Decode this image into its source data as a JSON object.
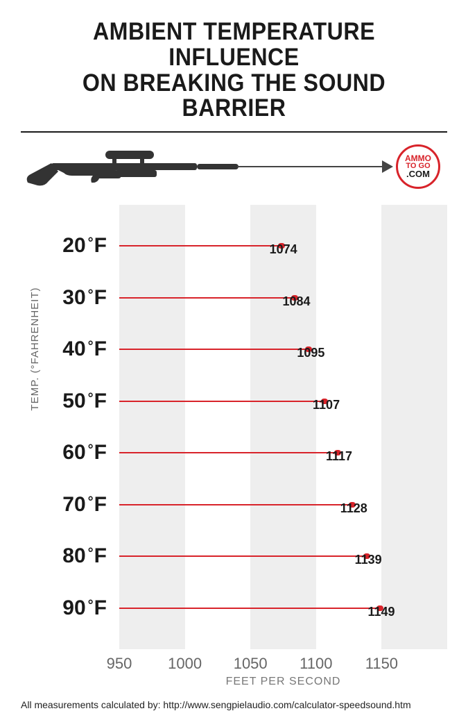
{
  "title": {
    "line1": "AMBIENT TEMPERATURE INFLUENCE",
    "line2": "ON BREAKING THE SOUND BARRIER",
    "fontsize": 35,
    "color": "#1a1a1a"
  },
  "logo": {
    "line1": "AMMO",
    "line2": "TO GO",
    "line3": ".COM",
    "ring_color": "#d8232a"
  },
  "chart": {
    "type": "bar-horizontal",
    "xmin": 950,
    "xmax": 1200,
    "xticks": [
      950,
      1000,
      1050,
      1100,
      1150
    ],
    "xlabel": "FEET PER SECOND",
    "ylabel": "TEMP. (°FAHRENHEIT)",
    "band_colors": {
      "light": "#eeeeee",
      "white": "#ffffff"
    },
    "bar_color": "#d8232a",
    "value_label_fontsize": 18,
    "temp_label_fontsize": 30,
    "tick_fontsize": 22,
    "tick_color": "#666666",
    "rows": [
      {
        "temp": 20,
        "value": 1074
      },
      {
        "temp": 30,
        "value": 1084
      },
      {
        "temp": 40,
        "value": 1095
      },
      {
        "temp": 50,
        "value": 1107
      },
      {
        "temp": 60,
        "value": 1117
      },
      {
        "temp": 70,
        "value": 1128
      },
      {
        "temp": 80,
        "value": 1139
      },
      {
        "temp": 90,
        "value": 1149
      }
    ]
  },
  "footnote": "All measurements calculated by: http://www.sengpielaudio.com/calculator-speedsound.htm"
}
